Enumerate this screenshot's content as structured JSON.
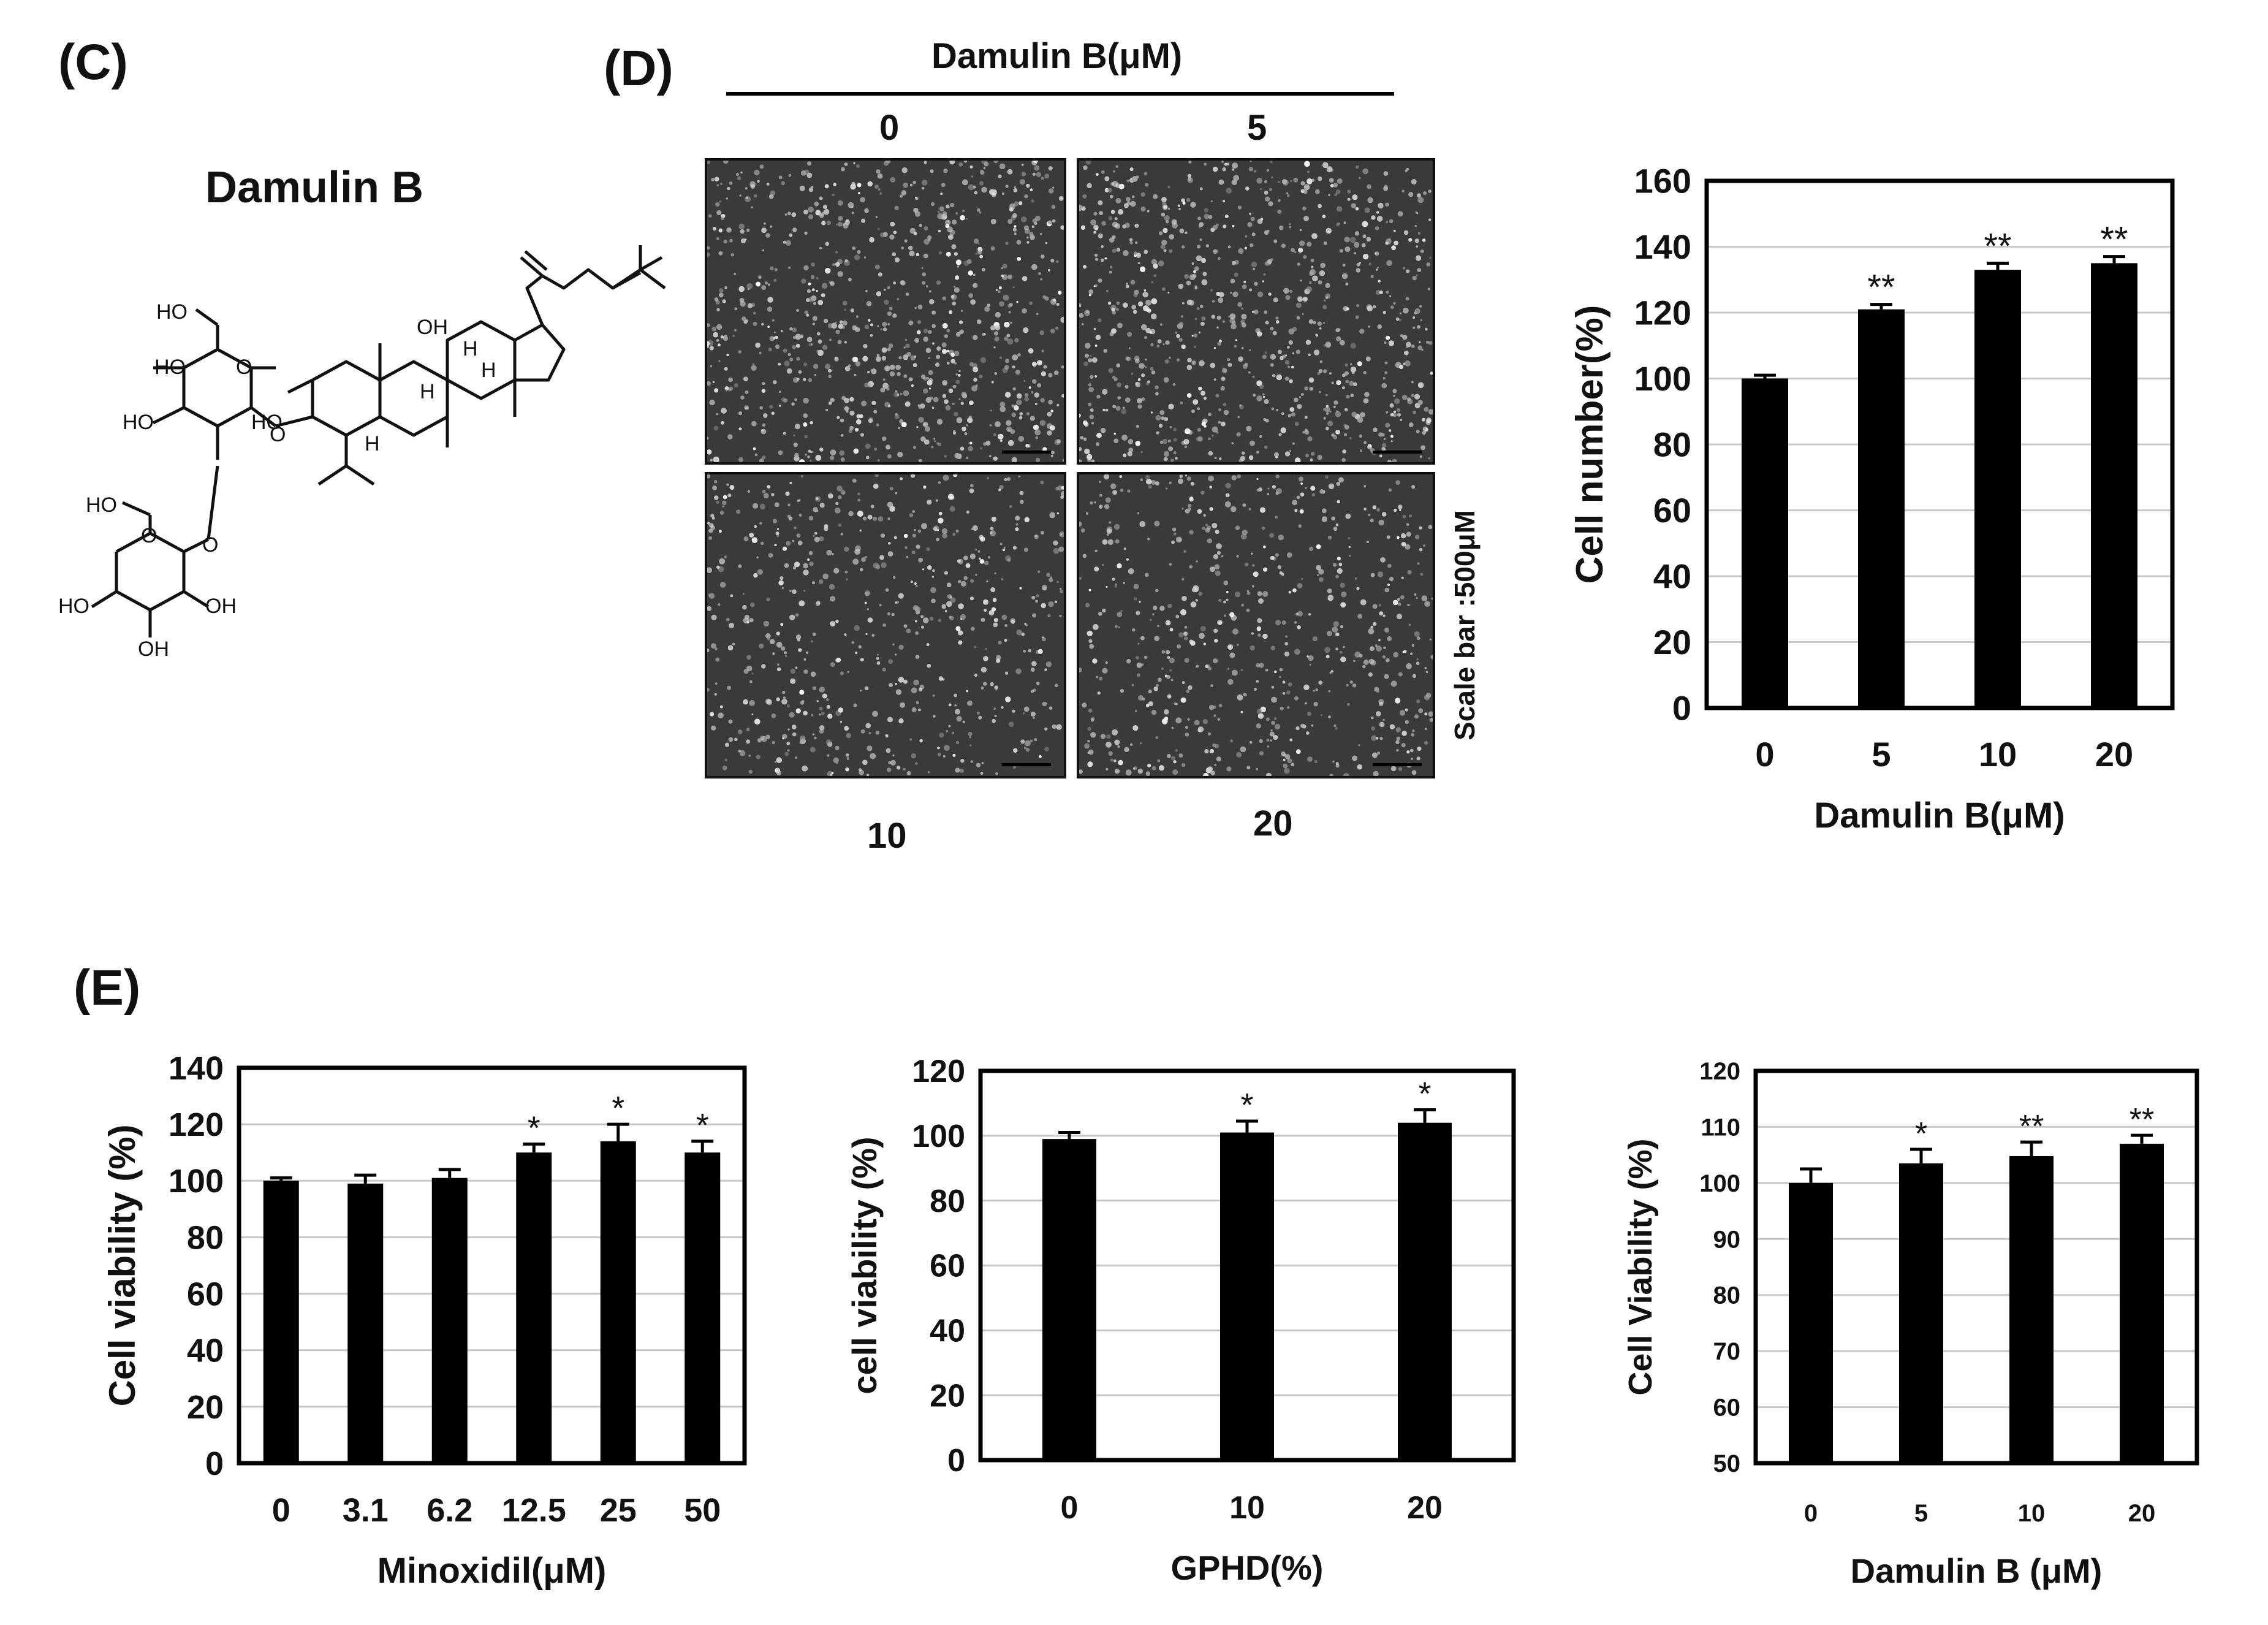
{
  "panels": {
    "c": "(C)",
    "d": "(D)",
    "e": "(E)"
  },
  "compound": {
    "name": "Damulin B",
    "labels": [
      "HO",
      "HO",
      "HO",
      "HO",
      "HO",
      "HO",
      "OH",
      "OH",
      "OH",
      "O",
      "O",
      "O",
      "O",
      "H",
      "H",
      "H",
      "H"
    ]
  },
  "micrographs": {
    "header": "Damulin B(μM)",
    "top_labels": [
      "0",
      "5"
    ],
    "bottom_labels": [
      "10",
      "20"
    ],
    "scale_bar": "Scale bar :500μM"
  },
  "colors": {
    "bar": "#000000",
    "grid": "#c8c8c8",
    "micro_bg": "#3a3a3a"
  },
  "chart_data": [
    {
      "type": "bar",
      "id": "cell-number",
      "title": "",
      "xlabel": "Damulin B(μM)",
      "ylabel": "Cell number(%)",
      "categories": [
        "0",
        "5",
        "10",
        "20"
      ],
      "values": [
        100,
        121,
        133,
        135
      ],
      "errors": [
        1,
        1.5,
        2,
        2
      ],
      "significance": [
        "",
        "**",
        "**",
        "**"
      ],
      "ylim": [
        0,
        160
      ],
      "yticks": [
        0,
        20,
        40,
        60,
        80,
        100,
        120,
        140,
        160
      ],
      "grid": true
    },
    {
      "type": "bar",
      "id": "minoxidil",
      "title": "",
      "xlabel": "Minoxidil(μM)",
      "ylabel": "Cell viability (%)",
      "categories": [
        "0",
        "3.1",
        "6.2",
        "12.5",
        "25",
        "50"
      ],
      "values": [
        100,
        99,
        101,
        110,
        114,
        110
      ],
      "errors": [
        1,
        3,
        3,
        3,
        6,
        4
      ],
      "significance": [
        "",
        "",
        "",
        "*",
        "*",
        "*"
      ],
      "ylim": [
        0,
        140
      ],
      "yticks": [
        0,
        20,
        40,
        60,
        80,
        100,
        120,
        140
      ],
      "grid": true
    },
    {
      "type": "bar",
      "id": "gphd",
      "title": "",
      "xlabel": "GPHD(%)",
      "ylabel": "cell viability (%)",
      "categories": [
        "0",
        "10",
        "20"
      ],
      "values": [
        99,
        101,
        104
      ],
      "errors": [
        2,
        3.5,
        4
      ],
      "significance": [
        "",
        "*",
        "*"
      ],
      "ylim": [
        0,
        120
      ],
      "yticks": [
        0,
        20,
        40,
        60,
        80,
        100,
        120
      ],
      "grid": true
    },
    {
      "type": "bar",
      "id": "damulin-viability",
      "title": "",
      "xlabel": "Damulin B (μM)",
      "ylabel": "Cell Viability (%)",
      "categories": [
        "0",
        "5",
        "10",
        "20"
      ],
      "values": [
        100,
        103.5,
        104.8,
        107
      ],
      "errors": [
        2.5,
        2.5,
        2.5,
        1.5
      ],
      "significance": [
        "",
        "*",
        "**",
        "**"
      ],
      "ylim": [
        50,
        120
      ],
      "yticks": [
        50,
        60,
        70,
        80,
        90,
        100,
        110,
        120
      ],
      "grid": true
    }
  ]
}
